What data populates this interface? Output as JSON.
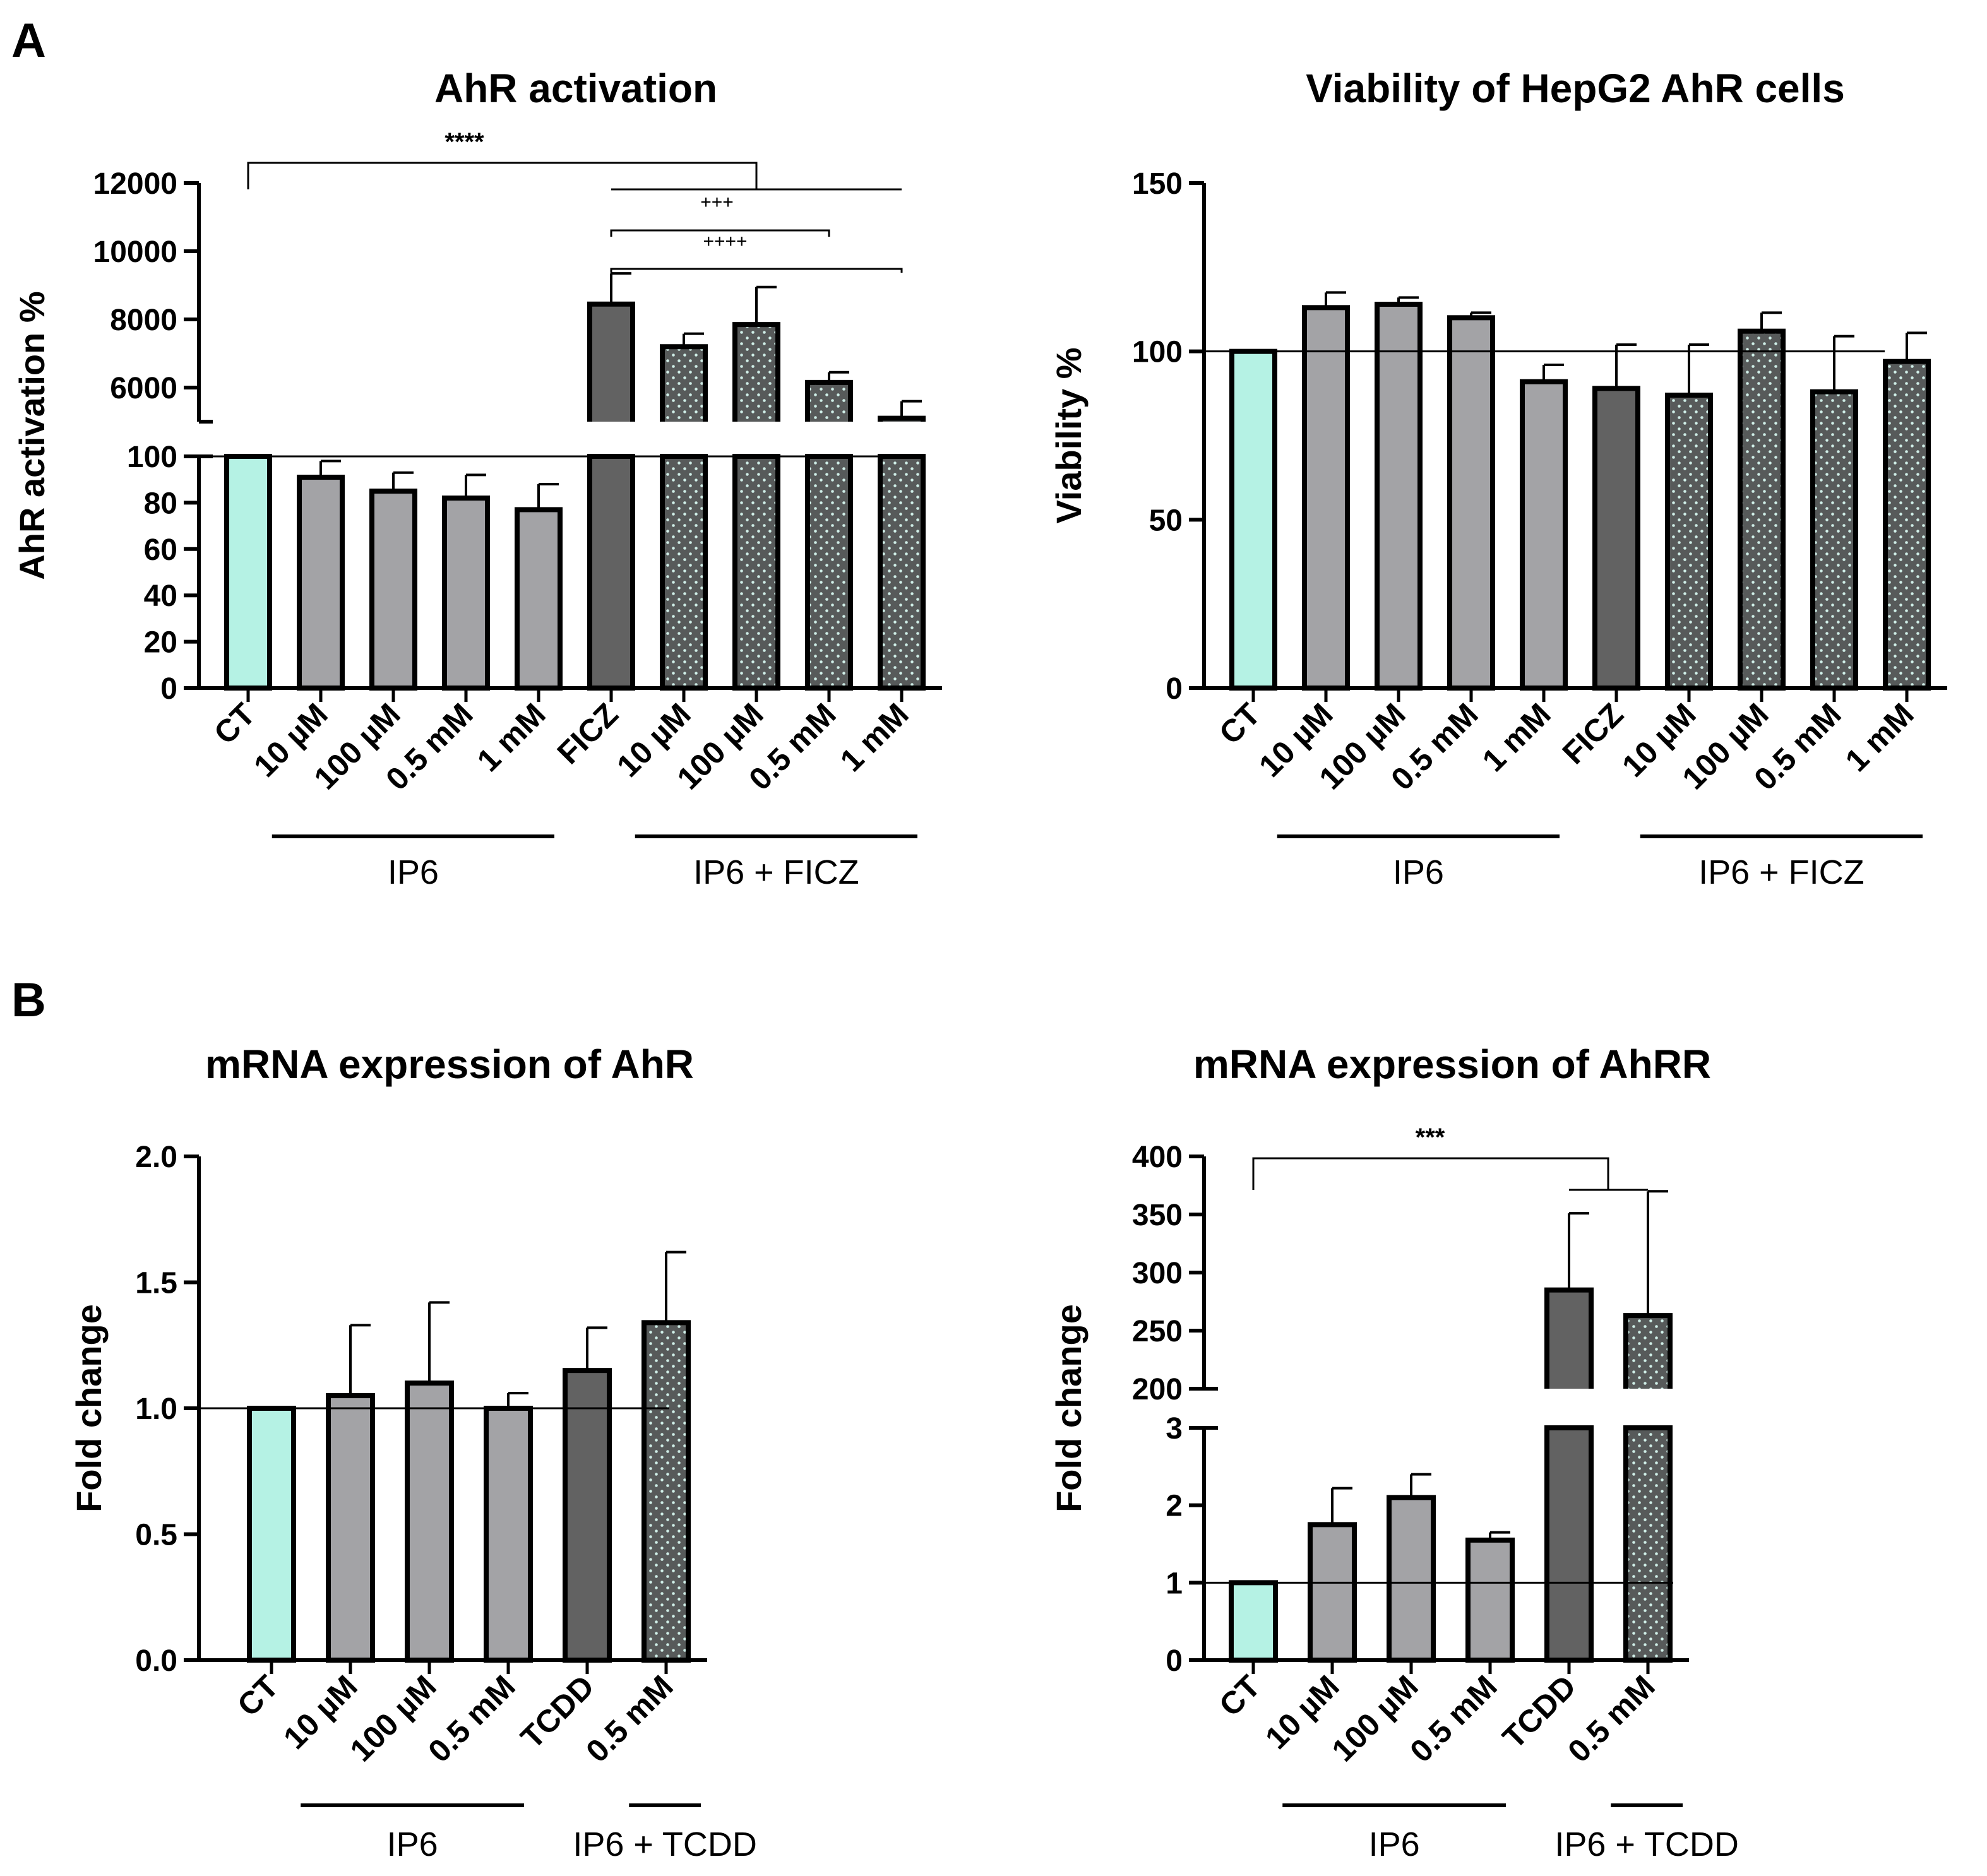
{
  "panels": {
    "a_letter": "A",
    "b_letter": "B"
  },
  "chart_data": [
    {
      "id": "ahr-activation",
      "type": "bar",
      "title": "AhR activation",
      "ylabel": "AhR activation %",
      "categories": [
        "CT",
        "10 µM",
        "100 µM",
        "0.5 mM",
        "1 mM",
        "FICZ",
        "10 µM",
        "100 µM",
        "0.5 mM",
        "1 mM"
      ],
      "values": [
        100,
        91,
        85,
        82,
        77,
        8450,
        7200,
        7850,
        6150,
        5100
      ],
      "errors": [
        0,
        7,
        8,
        10,
        11,
        900,
        380,
        1100,
        300,
        500
      ],
      "fills": [
        "teal",
        "gray",
        "gray",
        "gray",
        "gray",
        "dark",
        "dotted",
        "dotted",
        "dotted",
        "dotted"
      ],
      "broken_axis": {
        "lower": {
          "range": [
            0,
            100
          ],
          "ticks": [
            "0",
            "20",
            "40",
            "60",
            "80",
            "100"
          ],
          "tick_values": [
            0,
            20,
            40,
            60,
            80,
            100
          ]
        },
        "upper": {
          "range": [
            5000,
            12000
          ],
          "ticks": [
            "6000",
            "8000",
            "10000",
            "12000"
          ],
          "tick_values": [
            6000,
            8000,
            10000,
            12000
          ]
        }
      },
      "reference_line": 100,
      "groups": [
        {
          "label": "IP6",
          "from": 1,
          "to": 4
        },
        {
          "label": "IP6 + FICZ",
          "from": 6,
          "to": 9
        }
      ],
      "significance": [
        {
          "label": "****"
        },
        {
          "label": "+++"
        },
        {
          "label": "++++"
        }
      ]
    },
    {
      "id": "viability",
      "type": "bar",
      "title": "Viability of HepG2 AhR cells",
      "ylabel": "Viability %",
      "categories": [
        "CT",
        "10 µM",
        "100 µM",
        "0.5 mM",
        "1 mM",
        "FICZ",
        "10 µM",
        "100 µM",
        "0.5 mM",
        "1 mM"
      ],
      "values": [
        100,
        113,
        114,
        110,
        91,
        89,
        87,
        106,
        88,
        97
      ],
      "errors": [
        0,
        4.5,
        2,
        1.5,
        5,
        13,
        15,
        5.5,
        16.5,
        8.5
      ],
      "fills": [
        "teal",
        "gray",
        "gray",
        "gray",
        "gray",
        "dark",
        "dotted",
        "dotted",
        "dotted",
        "dotted"
      ],
      "ylim": [
        0,
        150
      ],
      "ticks": [
        "0",
        "50",
        "100",
        "150"
      ],
      "tick_values": [
        0,
        50,
        100,
        150
      ],
      "reference_line": 100,
      "groups": [
        {
          "label": "IP6",
          "from": 1,
          "to": 4
        },
        {
          "label": "IP6 + FICZ",
          "from": 6,
          "to": 9
        }
      ]
    },
    {
      "id": "mrna-ahr",
      "type": "bar",
      "title": "mRNA expression of AhR",
      "ylabel": "Fold change",
      "categories": [
        "CT",
        "10 µM",
        "100 µM",
        "0.5 mM",
        "TCDD",
        "0.5 mM"
      ],
      "values": [
        1.0,
        1.05,
        1.1,
        1.0,
        1.15,
        1.34
      ],
      "errors": [
        0,
        0.28,
        0.32,
        0.06,
        0.17,
        0.28
      ],
      "fills": [
        "teal",
        "gray",
        "gray",
        "gray",
        "dark",
        "dotted"
      ],
      "ylim": [
        0,
        2.0
      ],
      "ticks": [
        "0.0",
        "0.5",
        "1.0",
        "1.5",
        "2.0"
      ],
      "tick_values": [
        0,
        0.5,
        1.0,
        1.5,
        2.0
      ],
      "reference_line": 1,
      "groups": [
        {
          "label": "IP6",
          "from": 1,
          "to": 3
        },
        {
          "label": "IP6 + TCDD",
          "from": 5,
          "to": 5
        }
      ]
    },
    {
      "id": "mrna-ahrr",
      "type": "bar",
      "title": "mRNA expression of AhRR",
      "ylabel": "Fold change",
      "categories": [
        "CT",
        "10 µM",
        "100 µM",
        "0.5 mM",
        "TCDD",
        "0.5 mM"
      ],
      "values": [
        1.0,
        1.75,
        2.1,
        1.55,
        285,
        263
      ],
      "errors": [
        0,
        0.47,
        0.3,
        0.1,
        66,
        107
      ],
      "fills": [
        "teal",
        "gray",
        "gray",
        "gray",
        "dark",
        "dotted"
      ],
      "broken_axis": {
        "lower": {
          "range": [
            0,
            3
          ],
          "ticks": [
            "0",
            "1",
            "2",
            "3"
          ],
          "tick_values": [
            0,
            1,
            2,
            3
          ]
        },
        "upper": {
          "range": [
            200,
            400
          ],
          "ticks": [
            "200",
            "250",
            "300",
            "350",
            "400"
          ],
          "tick_values": [
            200,
            250,
            300,
            350,
            400
          ]
        }
      },
      "reference_line": 1,
      "groups": [
        {
          "label": "IP6",
          "from": 1,
          "to": 3
        },
        {
          "label": "IP6 + TCDD",
          "from": 5,
          "to": 5
        }
      ],
      "significance": [
        {
          "label": "***"
        }
      ]
    }
  ],
  "colors": {
    "teal": "#b5f2e4",
    "gray": "#a3a3a6",
    "dark": "#626262",
    "dotted_bg": "#575a5a",
    "dot": "#cfeee7",
    "ink": "#000000"
  }
}
